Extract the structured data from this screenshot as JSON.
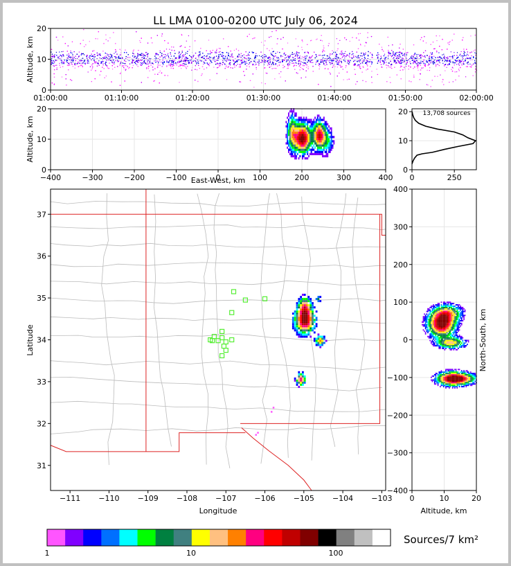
{
  "title": "LL LMA 0100-0200 UTC July 06, 2024",
  "colors": {
    "scale": [
      "#ff55ff",
      "#8000ff",
      "#0000ff",
      "#0070ff",
      "#00ffff",
      "#00ff00",
      "#008040",
      "#408080",
      "#ffff00",
      "#ffc080",
      "#ff8000",
      "#ff0080",
      "#ff0000",
      "#c00000",
      "#800000",
      "#000000",
      "#808080",
      "#c0c0c0",
      "#ffffff"
    ],
    "state_border": "#dd2222",
    "county_border": "#bbbbbb",
    "station": "#55ee33"
  },
  "chart_data": [
    {
      "name": "time-altitude",
      "type": "scatter",
      "ylabel": "Altitude, km",
      "xticks": [
        "01:00:00",
        "01:10:00",
        "01:20:00",
        "01:30:00",
        "01:40:00",
        "01:50:00",
        "02:00:00"
      ],
      "yticks": [
        "0",
        "10",
        "20"
      ],
      "xlim": [
        "01:00:00",
        "02:00:00"
      ],
      "ylim": [
        0,
        20
      ]
    },
    {
      "name": "eastwest-altitude",
      "type": "heatmap",
      "xlabel": "East-West, km",
      "ylabel": "Altitude, km",
      "xticks": [
        "−400",
        "−300",
        "−200",
        "−100",
        "0",
        "100",
        "200",
        "300",
        "400"
      ],
      "yticks": [
        "0",
        "10",
        "20"
      ],
      "xlim": [
        -400,
        400
      ],
      "ylim": [
        0,
        20
      ]
    },
    {
      "name": "altitude-histogram",
      "type": "line",
      "annotation": "13,708 sources",
      "xticks": [
        "0",
        "250"
      ],
      "yticks": [
        "0",
        "10",
        "20"
      ],
      "xlim": [
        0,
        380
      ],
      "ylim": [
        0,
        21
      ],
      "profile": [
        [
          0,
          2
        ],
        [
          6,
          3
        ],
        [
          15,
          4
        ],
        [
          30,
          5
        ],
        [
          60,
          5.5
        ],
        [
          120,
          6
        ],
        [
          190,
          7
        ],
        [
          270,
          8
        ],
        [
          360,
          9
        ],
        [
          375,
          10
        ],
        [
          330,
          11
        ],
        [
          300,
          12
        ],
        [
          250,
          13
        ],
        [
          150,
          14
        ],
        [
          80,
          15
        ],
        [
          40,
          16
        ],
        [
          20,
          17
        ],
        [
          10,
          18
        ],
        [
          4,
          19
        ],
        [
          1,
          20
        ]
      ]
    },
    {
      "name": "plan-view",
      "type": "heatmap",
      "xlabel": "Longitude",
      "ylabel": "Latitude",
      "xticks": [
        "−111",
        "−110",
        "−109",
        "−108",
        "−107",
        "−106",
        "−105",
        "−104",
        "−103"
      ],
      "yticks": [
        "31",
        "32",
        "33",
        "34",
        "35",
        "36",
        "37"
      ],
      "xlim": [
        -111.5,
        -102.9
      ],
      "ylim": [
        30.4,
        37.6
      ],
      "stations": [
        [
          -106.8,
          35.15
        ],
        [
          -106.5,
          34.95
        ],
        [
          -106.0,
          34.98
        ],
        [
          -106.85,
          34.65
        ],
        [
          -107.1,
          34.2
        ],
        [
          -107.1,
          34.05
        ],
        [
          -107.3,
          34.08
        ],
        [
          -107.4,
          34.0
        ],
        [
          -107.2,
          33.98
        ],
        [
          -107.0,
          33.95
        ],
        [
          -106.85,
          34.0
        ],
        [
          -107.05,
          33.85
        ],
        [
          -107.0,
          33.75
        ],
        [
          -107.1,
          33.62
        ],
        [
          -107.35,
          33.98
        ]
      ]
    },
    {
      "name": "altitude-northsouth",
      "type": "heatmap",
      "xlabel": "Altitude, km",
      "ylabel": "North-South, km",
      "xticks": [
        "0",
        "10",
        "20"
      ],
      "yticks": [
        "−400",
        "−300",
        "−200",
        "−100",
        "0",
        "100",
        "200",
        "300",
        "400"
      ],
      "xlim": [
        0,
        20
      ],
      "ylim": [
        -400,
        400
      ]
    }
  ],
  "colorbar": {
    "ticks": [
      "1",
      "10",
      "100"
    ],
    "label": "Sources/7 km²"
  }
}
